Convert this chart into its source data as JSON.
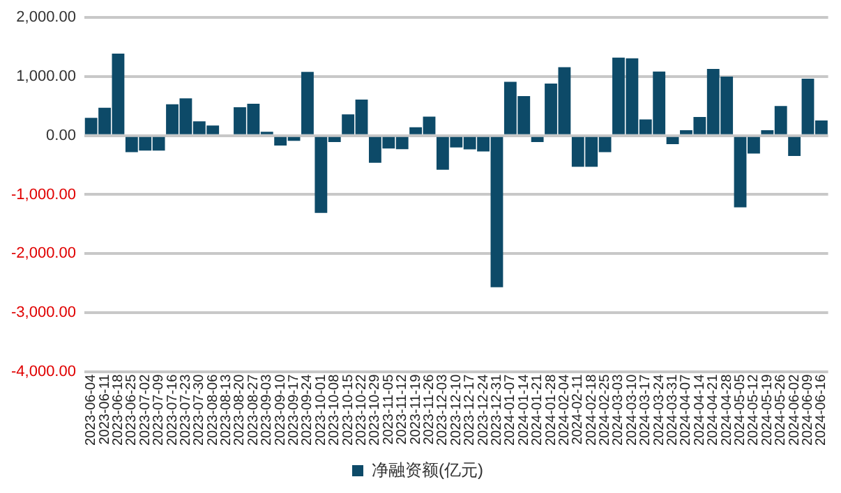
{
  "chart_data": {
    "type": "bar",
    "categories": [
      "2023-06-04",
      "2023-06-11",
      "2023-06-18",
      "2023-06-25",
      "2023-07-02",
      "2023-07-09",
      "2023-07-16",
      "2023-07-23",
      "2023-07-30",
      "2023-08-06",
      "2023-08-13",
      "2023-08-20",
      "2023-08-27",
      "2023-09-03",
      "2023-09-10",
      "2023-09-17",
      "2023-09-24",
      "2023-10-01",
      "2023-10-08",
      "2023-10-15",
      "2023-10-22",
      "2023-10-29",
      "2023-11-05",
      "2023-11-12",
      "2023-11-19",
      "2023-11-26",
      "2023-12-03",
      "2023-12-10",
      "2023-12-17",
      "2023-12-24",
      "2023-12-31",
      "2024-01-07",
      "2024-01-14",
      "2024-01-21",
      "2024-01-28",
      "2024-02-04",
      "2024-02-11",
      "2024-02-18",
      "2024-02-25",
      "2024-03-03",
      "2024-03-10",
      "2024-03-17",
      "2024-03-24",
      "2024-03-31",
      "2024-04-07",
      "2024-04-14",
      "2024-04-21",
      "2024-04-28",
      "2024-05-05",
      "2024-05-12",
      "2024-05-19",
      "2024-05-26",
      "2024-06-02",
      "2024-06-09",
      "2024-06-16"
    ],
    "series": [
      {
        "name": "净融资额(亿元)",
        "color": "#0d4a68",
        "values": [
          300,
          470,
          1390,
          -280,
          -255,
          -255,
          530,
          630,
          240,
          170,
          0,
          480,
          540,
          65,
          -170,
          -90,
          1080,
          -1310,
          -110,
          360,
          610,
          -460,
          -220,
          -230,
          140,
          320,
          -580,
          -200,
          -235,
          -270,
          -2570,
          910,
          670,
          -110,
          880,
          1160,
          -530,
          -530,
          -280,
          1320,
          1310,
          275,
          1085,
          -145,
          90,
          315,
          1130,
          1000,
          -1215,
          -305,
          90,
          500,
          -345,
          965,
          255
        ]
      }
    ],
    "ylim": [
      -4000,
      2000
    ],
    "yticks": [
      {
        "value": -4000,
        "label": "-4,000.00"
      },
      {
        "value": -3000,
        "label": "-3,000.00"
      },
      {
        "value": -2000,
        "label": "-2,000.00"
      },
      {
        "value": -1000,
        "label": "-1,000.00"
      },
      {
        "value": 0,
        "label": "0.00"
      },
      {
        "value": 1000,
        "label": "1,000.00"
      },
      {
        "value": 2000,
        "label": "2,000.00"
      }
    ],
    "grid": "y",
    "legend": "bottom"
  }
}
